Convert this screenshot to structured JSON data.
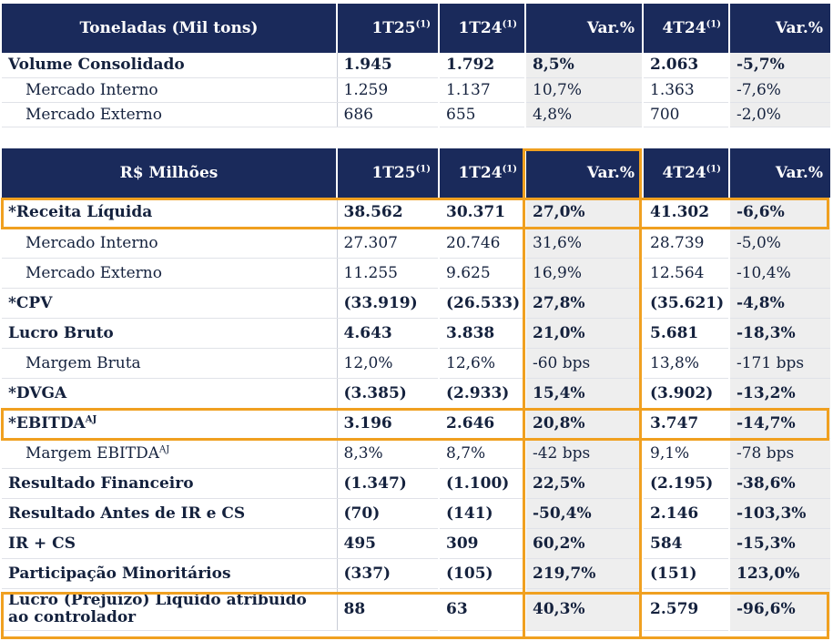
{
  "table1": {
    "headers": [
      "Toneladas (Mil tons)",
      "1T25",
      "1T24",
      "Var.%",
      "4T24",
      "Var.%"
    ],
    "header_note": "(1)",
    "rows": [
      {
        "label": "Volume Consolidado",
        "v": [
          "1.945",
          "1.792",
          "8,5%",
          "2.063",
          "-5,7%"
        ]
      },
      {
        "label": "Mercado Interno",
        "v": [
          "1.259",
          "1.137",
          "10,7%",
          "1.363",
          "-7,6%"
        ]
      },
      {
        "label": "Mercado Externo",
        "v": [
          "686",
          "655",
          "4,8%",
          "700",
          "-2,0%"
        ]
      }
    ]
  },
  "table2": {
    "headers": [
      "R$ Milhões",
      "1T25",
      "1T24",
      "Var.%",
      "4T24",
      "Var.%"
    ],
    "header_note": "(1)",
    "rows": [
      {
        "label": "*Receita Líquida",
        "v": [
          "38.562",
          "30.371",
          "27,0%",
          "41.302",
          "-6,6%"
        ]
      },
      {
        "label": "Mercado Interno",
        "v": [
          "27.307",
          "20.746",
          "31,6%",
          "28.739",
          "-5,0%"
        ]
      },
      {
        "label": "Mercado Externo",
        "v": [
          "11.255",
          "9.625",
          "16,9%",
          "12.564",
          "-10,4%"
        ]
      },
      {
        "label": "*CPV",
        "v": [
          "(33.919)",
          "(26.533)",
          "27,8%",
          "(35.621)",
          "-4,8%"
        ]
      },
      {
        "label": "Lucro Bruto",
        "v": [
          "4.643",
          "3.838",
          "21,0%",
          "5.681",
          "-18,3%"
        ]
      },
      {
        "label": "Margem Bruta",
        "v": [
          "12,0%",
          "12,6%",
          "-60 bps",
          "13,8%",
          "-171 bps"
        ]
      },
      {
        "label": "*DVGA",
        "v": [
          "(3.385)",
          "(2.933)",
          "15,4%",
          "(3.902)",
          "-13,2%"
        ]
      },
      {
        "label": "*EBITDA",
        "sup": "AJ",
        "v": [
          "3.196",
          "2.646",
          "20,8%",
          "3.747",
          "-14,7%"
        ]
      },
      {
        "label": "Margem EBITDA",
        "sup": "AJ",
        "v": [
          "8,3%",
          "8,7%",
          "-42 bps",
          "9,1%",
          "-78 bps"
        ]
      },
      {
        "label": "Resultado Financeiro",
        "v": [
          "(1.347)",
          "(1.100)",
          "22,5%",
          "(2.195)",
          "-38,6%"
        ]
      },
      {
        "label": "Resultado Antes de IR e CS",
        "v": [
          "(70)",
          "(141)",
          "-50,4%",
          "2.146",
          "-103,3%"
        ]
      },
      {
        "label": "IR + CS",
        "v": [
          "495",
          "309",
          "60,2%",
          "584",
          "-15,3%"
        ]
      },
      {
        "label": "Participação Minoritários",
        "v": [
          "(337)",
          "(105)",
          "219,7%",
          "(151)",
          "123,0%"
        ]
      },
      {
        "label": "Lucro (Prejuízo) Líquido atribuído ao controlador",
        "v": [
          "88",
          "63",
          "40,3%",
          "2.579",
          "-96,6%"
        ]
      }
    ]
  },
  "colors": {
    "header_bg": "#1a2a5b",
    "highlight": "#f0a020",
    "shade": "#eeeeee",
    "text": "#14213d"
  }
}
